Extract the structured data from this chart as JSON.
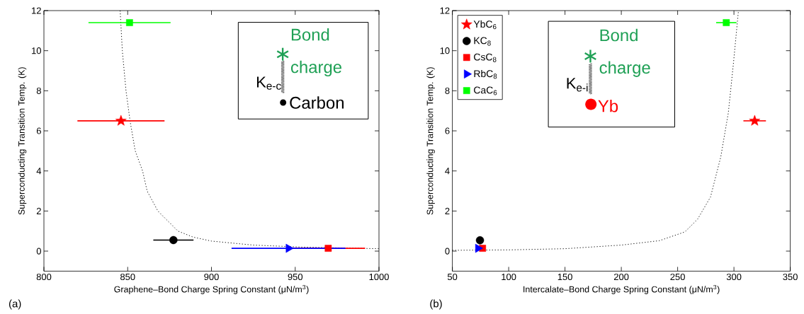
{
  "chart_data": [
    {
      "type": "scatter",
      "xlabel": "Graphene–Bond Charge Spring Constant (μN/m$^{3}$)",
      "ylabel": "Superconducting Transition Temp. (K)",
      "xlim": [
        800,
        1000
      ],
      "ylim": [
        -1,
        12
      ],
      "xticks": [
        800,
        850,
        900,
        950,
        1000
      ],
      "yticks": [
        0,
        2,
        4,
        6,
        8,
        10,
        12
      ],
      "annotations": [
        "Bond charge",
        "K$_{e-c}$",
        "Carbon",
        "(a)"
      ],
      "series": [
        {
          "type": "line",
          "color": "#000000",
          "line_style": "dotted",
          "marker": "none",
          "x": [
            845.5,
            846.8,
            849,
            851.4,
            854.5,
            858.9,
            861.6,
            868,
            880,
            889,
            900,
            925,
            954,
            1000
          ],
          "values": [
            12,
            10,
            8,
            6.5,
            5,
            4,
            3,
            2,
            1,
            0.7,
            0.5,
            0.3,
            0.2,
            0.12
          ]
        },
        {
          "color": "#ff0000",
          "marker": "star",
          "x": [
            846
          ],
          "values": [
            6.5
          ],
          "xerrors": [
            26
          ]
        },
        {
          "color": "#000000",
          "marker": "circle",
          "x": [
            877.3
          ],
          "values": [
            0.55
          ],
          "xerrors": [
            12
          ]
        },
        {
          "color": "#ff0000",
          "marker": "square",
          "x": [
            969.7
          ],
          "values": [
            0.14
          ],
          "xerrors": [
            22
          ]
        },
        {
          "color": "#0000ff",
          "marker": "triangle",
          "x": [
            946
          ],
          "values": [
            0.14
          ],
          "xerrors": [
            34
          ]
        },
        {
          "color": "#00ff00",
          "marker": "square",
          "x": [
            851.1
          ],
          "values": [
            11.4
          ],
          "xerrors": [
            24.5
          ]
        }
      ]
    },
    {
      "type": "scatter",
      "xlabel": "Intercalate–Bond Charge Spring Constant (μN/m$^{3}$)",
      "ylabel": "Superconducting Transition Temp. (K)",
      "xlim": [
        50,
        350
      ],
      "ylim": [
        -1,
        12
      ],
      "xticks": [
        50,
        100,
        150,
        200,
        250,
        300,
        350
      ],
      "yticks": [
        0,
        2,
        4,
        6,
        8,
        10,
        12
      ],
      "legend": "top left",
      "annotations": [
        "Bond charge",
        "K$_{e-i}$",
        "Yb",
        "(b)"
      ],
      "series": [
        {
          "type": "line",
          "color": "#000000",
          "line_style": "dotted",
          "marker": "none",
          "x": [
            50,
            100,
            150,
            200,
            233.8,
            256.5,
            267.8,
            279.2,
            288.3,
            295,
            299.6,
            304
          ],
          "values": [
            0.04,
            0.06,
            0.12,
            0.3,
            0.52,
            0.96,
            1.6,
            2.7,
            4.7,
            6.9,
            9.4,
            12
          ]
        },
        {
          "name": "YbC$_{6}$",
          "color": "#ff0000",
          "marker": "star",
          "x": [
            318.4
          ],
          "values": [
            6.5
          ],
          "xerrors": [
            10
          ]
        },
        {
          "name": "KC$_{8}$",
          "color": "#000000",
          "marker": "circle",
          "x": [
            74.5
          ],
          "values": [
            0.54
          ]
        },
        {
          "name": "CsC$_{8}$",
          "color": "#ff0000",
          "marker": "square",
          "x": [
            76.8
          ],
          "values": [
            0.14
          ]
        },
        {
          "name": "RbC$_{8}$",
          "color": "#0000ff",
          "marker": "triangle",
          "x": [
            72.7
          ],
          "values": [
            0.14
          ]
        },
        {
          "name": "CaC$_{6}$",
          "color": "#00ff00",
          "marker": "square",
          "x": [
            293.2
          ],
          "values": [
            11.4
          ],
          "xerrors": [
            9
          ]
        }
      ]
    }
  ]
}
